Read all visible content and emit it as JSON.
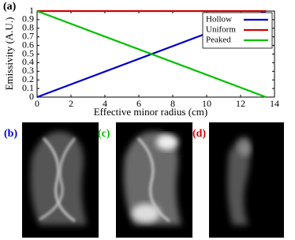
{
  "chart_data": {
    "type": "line",
    "annotation": "(a)",
    "x_label": "Effective minor radius (cm)",
    "y_label": "Emissivity (A.U.)",
    "x": [
      0,
      13.5
    ],
    "series": [
      {
        "name": "Hollow",
        "color": "#0000c8",
        "values": [
          0,
          1
        ]
      },
      {
        "name": "Uniform",
        "color": "#d00000",
        "values": [
          1,
          1
        ]
      },
      {
        "name": "Peaked",
        "color": "#00c000",
        "values": [
          1,
          0
        ]
      }
    ],
    "xlim": [
      0,
      14
    ],
    "xticks": [
      0,
      2,
      4,
      6,
      8,
      10,
      12,
      14
    ],
    "ylim": [
      0,
      1
    ],
    "yticks": [
      0,
      0.1,
      0.2,
      0.3,
      0.4,
      0.5,
      0.6,
      0.7,
      0.8,
      0.9,
      1
    ],
    "legend": "upper-right"
  },
  "images": [
    {
      "label": "(b)",
      "color": "#0000c8"
    },
    {
      "label": "(c)",
      "color": "#00c000"
    },
    {
      "label": "(d)",
      "color": "#d00000"
    }
  ]
}
